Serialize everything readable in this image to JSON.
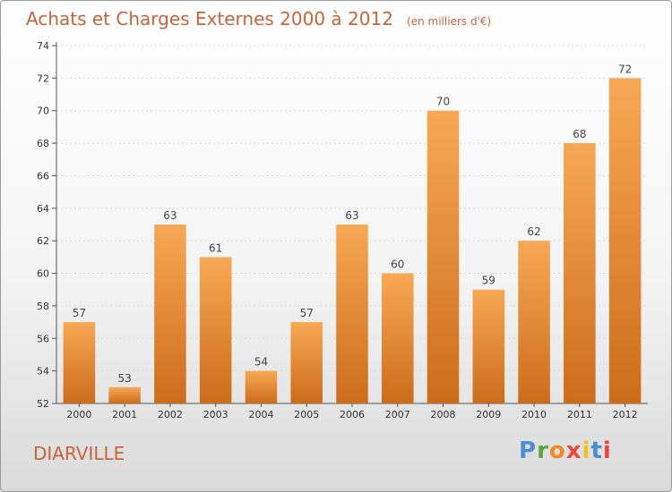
{
  "title": "Achats et Charges Externes 2000 à 2012",
  "unit": "(en milliers d'€)",
  "city": "DIARVILLE",
  "logo": {
    "letters": [
      "P",
      "r",
      "o",
      "x",
      "i",
      "t",
      "i"
    ],
    "colors": [
      "#4a8fd4",
      "#5aa640",
      "#f08a24",
      "#e8483c",
      "#f0c020",
      "#4a8fd4",
      "#e8483c"
    ]
  },
  "colors": {
    "bar_top": "#f7a854",
    "bar_bottom": "#cc6c1a",
    "text": "#c8643c"
  },
  "chart_data": {
    "type": "bar",
    "categories": [
      "2000",
      "2001",
      "2002",
      "2003",
      "2004",
      "2005",
      "2006",
      "2007",
      "2008",
      "2009",
      "2010",
      "2011",
      "2012"
    ],
    "values": [
      57,
      53,
      63,
      61,
      54,
      57,
      63,
      60,
      70,
      59,
      62,
      68,
      72
    ],
    "ylim": [
      52,
      74
    ],
    "yticks": [
      52,
      54,
      56,
      58,
      60,
      62,
      64,
      66,
      68,
      70,
      72,
      74
    ],
    "grid": true
  }
}
